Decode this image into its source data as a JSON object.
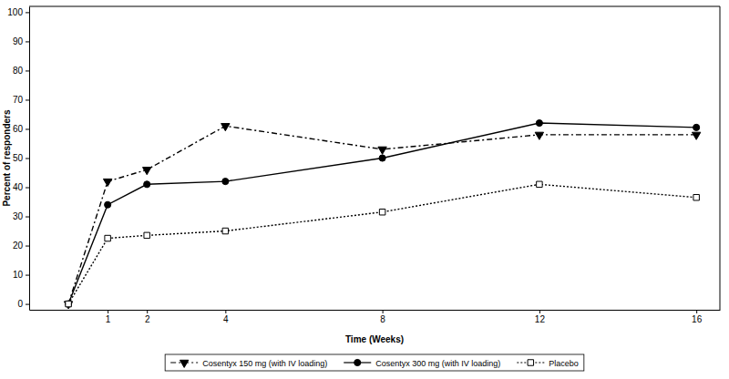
{
  "chart_data": {
    "type": "line",
    "x_label": "Time (Weeks)",
    "y_label": "Percent of responders",
    "x": [
      0,
      1,
      2,
      4,
      8,
      12,
      16
    ],
    "xlim": [
      -1,
      16.6
    ],
    "xticks": [
      1,
      2,
      4,
      8,
      12,
      16
    ],
    "ylim": [
      -2,
      102
    ],
    "yticks": [
      0,
      10,
      20,
      30,
      40,
      50,
      60,
      70,
      80,
      90,
      100
    ],
    "grid": false,
    "legend": "bottom",
    "series": [
      {
        "name": "Cosentyx 150 mg (with IV loading)",
        "color": "#000000",
        "marker": "triangle-down",
        "line_style": "dashdot",
        "values": [
          0,
          42,
          46,
          61,
          53,
          58,
          58
        ]
      },
      {
        "name": "Cosentyx 300 mg (with IV loading)",
        "color": "#000000",
        "marker": "circle",
        "line_style": "solid",
        "values": [
          0,
          34,
          41,
          42,
          50,
          62,
          60.5
        ]
      },
      {
        "name": "Placebo",
        "color": "#000000",
        "marker": "square-open",
        "line_style": "dotted",
        "values": [
          0,
          22.5,
          23.5,
          25,
          31.5,
          41,
          36.5
        ]
      }
    ]
  }
}
